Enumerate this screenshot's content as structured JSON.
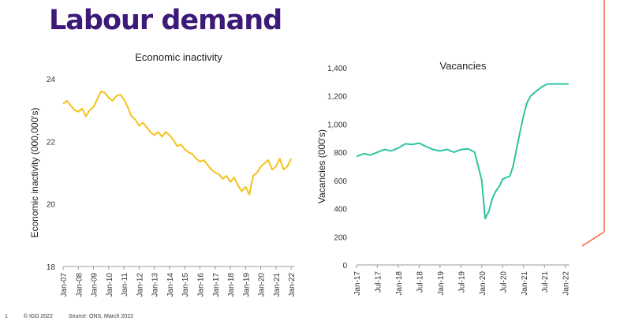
{
  "page": {
    "title": "Labour demand"
  },
  "footer": {
    "page_number": "1",
    "copyright": "© IGD 2022",
    "source": "Source: ONS, March 2022"
  },
  "colors": {
    "title": "#3d1a78",
    "inactivity_line": "#f2c21b",
    "vacancies_line": "#2ec4a0",
    "accent": "#f26a3c"
  },
  "chart_data": [
    {
      "type": "line",
      "title": "Economic inactivity",
      "xlabel": "",
      "ylabel": "Economic inactivity  (000,000's)",
      "ylim": [
        18,
        24
      ],
      "yticks": [
        "18",
        "20",
        "22",
        "24"
      ],
      "xticks": [
        "Jan-07",
        "Jan-08",
        "Jan-09",
        "Jan-10",
        "Jan-11",
        "Jan-12",
        "Jan-13",
        "Jan-14",
        "Jan-15",
        "Jan-16",
        "Jan-17",
        "Jan-18",
        "Jan-19",
        "Jan-20",
        "Jan-21",
        "Jan-22"
      ],
      "series": [
        {
          "x": [
            2007.0,
            2007.25,
            2007.5,
            2007.75,
            2008.0,
            2008.25,
            2008.5,
            2008.75,
            2009.0,
            2009.25,
            2009.5,
            2009.75,
            2010.0,
            2010.25,
            2010.5,
            2010.75,
            2011.0,
            2011.25,
            2011.5,
            2011.75,
            2012.0,
            2012.25,
            2012.5,
            2012.75,
            2013.0,
            2013.25,
            2013.5,
            2013.75,
            2014.0,
            2014.25,
            2014.5,
            2014.75,
            2015.0,
            2015.25,
            2015.5,
            2015.75,
            2016.0,
            2016.25,
            2016.5,
            2016.75,
            2017.0,
            2017.25,
            2017.5,
            2017.75,
            2018.0,
            2018.25,
            2018.5,
            2018.75,
            2019.0,
            2019.25,
            2019.5,
            2019.75,
            2020.0,
            2020.25,
            2020.5,
            2020.75,
            2021.0,
            2021.25,
            2021.5,
            2021.75,
            2022.0
          ],
          "values": [
            23.2,
            23.3,
            23.15,
            23.0,
            22.95,
            23.05,
            22.8,
            23.0,
            23.1,
            23.35,
            23.6,
            23.55,
            23.4,
            23.3,
            23.45,
            23.5,
            23.35,
            23.1,
            22.8,
            22.7,
            22.5,
            22.6,
            22.45,
            22.3,
            22.2,
            22.3,
            22.15,
            22.3,
            22.2,
            22.05,
            21.85,
            21.9,
            21.75,
            21.65,
            21.6,
            21.45,
            21.35,
            21.4,
            21.25,
            21.1,
            21.0,
            20.95,
            20.8,
            20.9,
            20.7,
            20.85,
            20.6,
            20.4,
            20.55,
            20.3,
            20.9,
            21.0,
            21.2,
            21.3,
            21.4,
            21.1,
            21.2,
            21.45,
            21.1,
            21.2,
            21.45
          ]
        }
      ]
    },
    {
      "type": "line",
      "title": "Vacancies",
      "xlabel": "",
      "ylabel": "Vacancies (000's)",
      "ylim": [
        0,
        1400
      ],
      "yticks": [
        "0",
        "200",
        "400",
        "600",
        "800",
        "1,000",
        "1,200",
        "1,400"
      ],
      "xticks": [
        "Jan-17",
        "Jul-17",
        "Jan-18",
        "Jul-18",
        "Jan-19",
        "Jul-19",
        "Jan-20",
        "Jul-20",
        "Jan-21",
        "Jul-21",
        "Jan-22"
      ],
      "series": [
        {
          "x": [
            2017.0,
            2017.17,
            2017.33,
            2017.5,
            2017.67,
            2017.83,
            2018.0,
            2018.17,
            2018.33,
            2018.5,
            2018.67,
            2018.83,
            2019.0,
            2019.17,
            2019.33,
            2019.5,
            2019.67,
            2019.83,
            2020.0,
            2020.08,
            2020.17,
            2020.25,
            2020.33,
            2020.42,
            2020.5,
            2020.58,
            2020.67,
            2020.75,
            2020.83,
            2020.92,
            2021.0,
            2021.08,
            2021.17,
            2021.25,
            2021.33,
            2021.42,
            2021.5,
            2021.58,
            2021.67,
            2021.75,
            2021.83,
            2021.92,
            2022.0,
            2022.08
          ],
          "values": [
            770,
            790,
            780,
            800,
            820,
            810,
            830,
            860,
            855,
            865,
            840,
            820,
            810,
            820,
            800,
            820,
            825,
            800,
            600,
            330,
            380,
            470,
            520,
            560,
            610,
            620,
            630,
            700,
            820,
            950,
            1060,
            1150,
            1200,
            1220,
            1240,
            1260,
            1275,
            1285,
            1285,
            1285,
            1285,
            1285,
            1285,
            1285
          ]
        }
      ]
    }
  ]
}
